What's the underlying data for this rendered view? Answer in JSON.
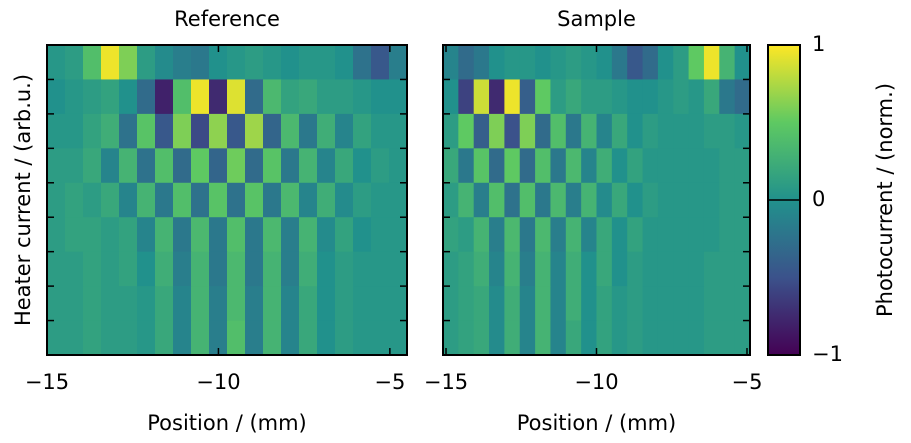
{
  "chart_data": [
    {
      "type": "heatmap",
      "title": "Reference",
      "xlabel": "Position / (mm)",
      "ylabel": "Heater current / (arb.u.)",
      "xlim": [
        -15,
        -4.5
      ],
      "xticks": [
        {
          "value": -15,
          "label": "−15"
        },
        {
          "value": -10,
          "label": "−10"
        },
        {
          "value": -5,
          "label": "−5"
        }
      ],
      "colormap": "viridis",
      "z": [
        [
          0.05,
          0.1,
          0.4,
          0.95,
          0.6,
          0.1,
          -0.05,
          -0.15,
          -0.2,
          0,
          0.05,
          0.1,
          0.05,
          0,
          0.05,
          0.05,
          0,
          -0.25,
          -0.45,
          -0.15
        ],
        [
          0,
          0.05,
          0.1,
          0.15,
          0,
          -0.3,
          -0.8,
          0.4,
          0.95,
          -0.75,
          0.9,
          -0.3,
          0.35,
          0.15,
          0.2,
          0.1,
          0.1,
          0.05,
          0,
          0
        ],
        [
          0.05,
          0.05,
          0.15,
          0.25,
          -0.25,
          0.45,
          -0.45,
          0.6,
          -0.55,
          0.65,
          -0.45,
          0.7,
          -0.35,
          0.35,
          -0.2,
          0.25,
          -0.1,
          0.15,
          0.05,
          0.05
        ],
        [
          0.1,
          0.1,
          0.2,
          -0.1,
          0.3,
          -0.25,
          0.4,
          -0.3,
          0.5,
          -0.35,
          0.55,
          -0.3,
          0.45,
          -0.2,
          0.3,
          -0.1,
          0.2,
          0,
          0.1,
          0.05
        ],
        [
          0.1,
          0.15,
          0.1,
          0.2,
          -0.1,
          0.3,
          -0.2,
          0.4,
          -0.25,
          0.45,
          -0.25,
          0.45,
          -0.2,
          0.35,
          -0.1,
          0.25,
          -0.05,
          0.1,
          0.05,
          0.05
        ],
        [
          0.1,
          0.15,
          0.15,
          0.1,
          0.15,
          -0.1,
          0.3,
          -0.2,
          0.35,
          -0.2,
          0.4,
          -0.2,
          0.35,
          -0.15,
          0.3,
          -0.05,
          0.15,
          0,
          0.05,
          0.05
        ],
        [
          0.1,
          0.1,
          0.15,
          0.1,
          0.15,
          0,
          0.25,
          -0.15,
          0.3,
          -0.2,
          0.35,
          -0.2,
          0.3,
          -0.15,
          0.25,
          0,
          0.1,
          0.05,
          0.05,
          0.05
        ],
        [
          0.1,
          0.1,
          0.15,
          0.1,
          0.1,
          0.05,
          0.2,
          -0.1,
          0.3,
          -0.15,
          0.35,
          -0.15,
          0.3,
          -0.1,
          0.2,
          0,
          0.1,
          0.05,
          0.05,
          0.05
        ],
        [
          0.1,
          0.1,
          0.15,
          0.1,
          0.1,
          0.05,
          0.2,
          -0.1,
          0.3,
          -0.15,
          0.4,
          -0.15,
          0.3,
          -0.1,
          0.2,
          0,
          0.1,
          0.05,
          0.05,
          0.05
        ]
      ]
    },
    {
      "type": "heatmap",
      "title": "Sample",
      "xlabel": "Position / (mm)",
      "xlim": [
        -15.1,
        -4.9
      ],
      "xticks": [
        {
          "value": -15,
          "label": "−15"
        },
        {
          "value": -10,
          "label": "−10"
        },
        {
          "value": -5,
          "label": "−5"
        }
      ],
      "colormap": "viridis",
      "colorbar": {
        "label": "Photocurrent / (norm.)",
        "clim": [
          -1,
          1
        ],
        "ticks": [
          {
            "value": -1,
            "label": "−1"
          },
          0,
          1
        ]
      },
      "z": [
        [
          -0.1,
          -0.3,
          -0.2,
          0,
          0.05,
          0.05,
          0,
          0.05,
          0.1,
          0.05,
          0,
          -0.2,
          -0.45,
          -0.3,
          0,
          0.1,
          0.5,
          0.95,
          0.3,
          0
        ],
        [
          0,
          -0.6,
          0.85,
          -0.75,
          0.95,
          -0.4,
          0.5,
          0.1,
          0.2,
          0.1,
          0.1,
          0.05,
          0,
          0,
          0.05,
          0.1,
          0.05,
          0.2,
          -0.2,
          -0.3
        ],
        [
          0.1,
          0.5,
          -0.4,
          0.6,
          -0.5,
          0.6,
          -0.3,
          0.4,
          -0.2,
          0.3,
          -0.1,
          0.2,
          0,
          0.1,
          0.05,
          0.05,
          0.05,
          0.1,
          0.1,
          0.05
        ],
        [
          0.2,
          -0.2,
          0.45,
          -0.3,
          0.5,
          -0.3,
          0.4,
          -0.2,
          0.35,
          -0.1,
          0.25,
          0,
          0.15,
          0.05,
          0.05,
          0.05,
          0.05,
          0.05,
          0.1,
          0.1
        ],
        [
          0.1,
          0.3,
          -0.15,
          0.4,
          -0.25,
          0.4,
          -0.2,
          0.35,
          -0.15,
          0.3,
          -0.05,
          0.2,
          0,
          0.1,
          0.05,
          0.05,
          0.05,
          0.05,
          0.1,
          0.1
        ],
        [
          0.15,
          0.1,
          0.3,
          -0.15,
          0.35,
          -0.2,
          0.35,
          -0.15,
          0.3,
          -0.1,
          0.2,
          0,
          0.15,
          0.05,
          0.05,
          0.05,
          0.05,
          0.05,
          0.1,
          0.1
        ],
        [
          0.1,
          0.15,
          0.25,
          -0.1,
          0.3,
          -0.15,
          0.3,
          -0.1,
          0.25,
          0,
          0.2,
          0,
          0.1,
          0.05,
          0.05,
          0.05,
          0.05,
          0.1,
          0.1,
          0.1
        ],
        [
          0.1,
          0.15,
          0.2,
          -0.05,
          0.25,
          -0.1,
          0.3,
          -0.1,
          0.25,
          0,
          0.15,
          0.05,
          0.1,
          0.05,
          0.05,
          0.05,
          0.05,
          0.1,
          0.1,
          0.1
        ],
        [
          0.1,
          0.15,
          0.2,
          -0.05,
          0.25,
          -0.1,
          0.3,
          -0.1,
          0.2,
          0,
          0.15,
          0.05,
          0.1,
          0.05,
          0.05,
          0.05,
          0.05,
          0.1,
          0.1,
          0.1
        ]
      ]
    }
  ]
}
